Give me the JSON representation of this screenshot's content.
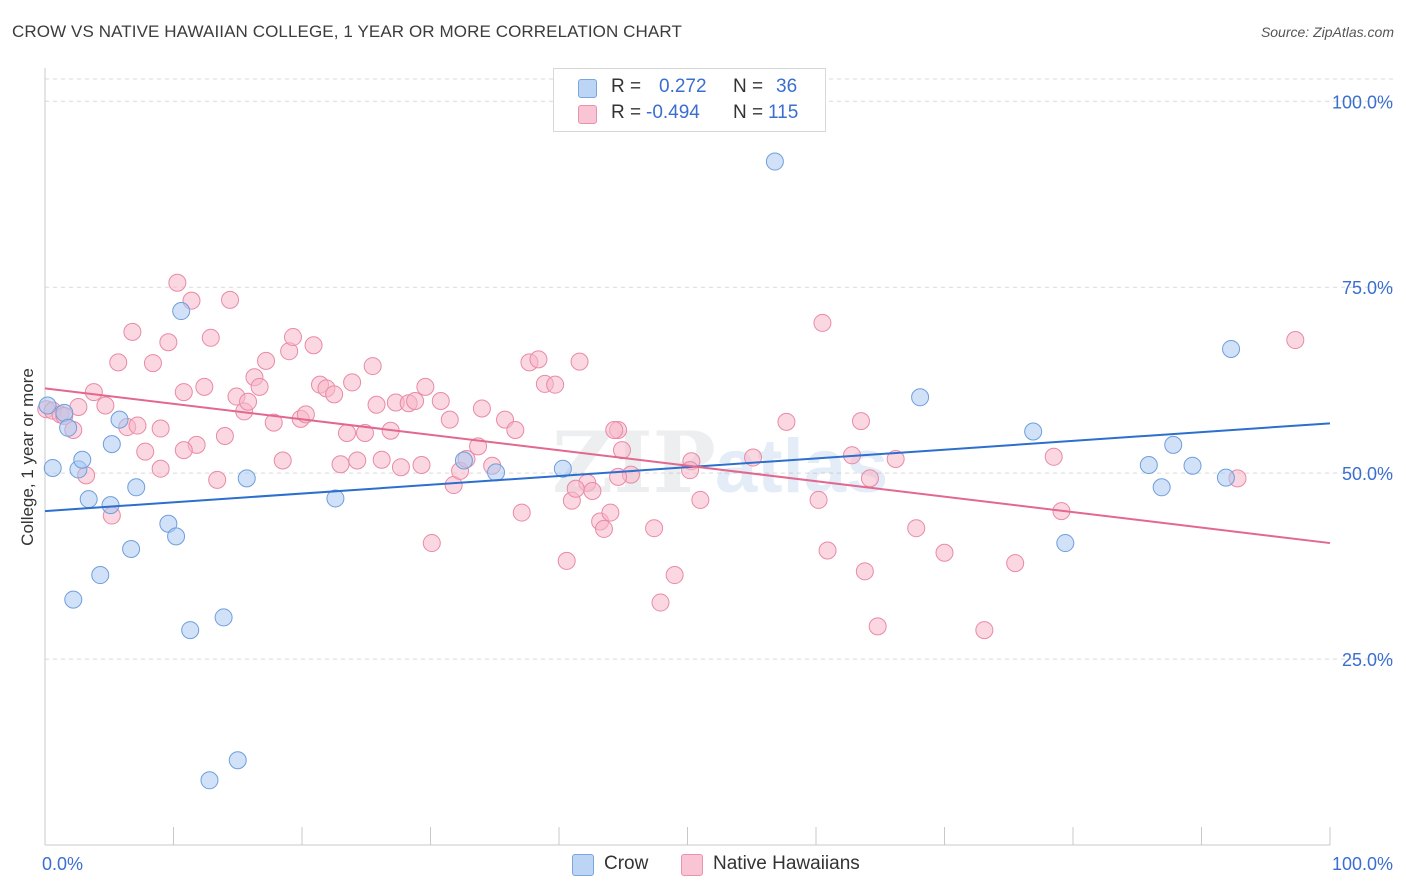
{
  "title": "CROW VS NATIVE HAWAIIAN COLLEGE, 1 YEAR OR MORE CORRELATION CHART",
  "source": "Source: ZipAtlas.com",
  "watermark": {
    "part1": "ZIP",
    "part2": "atlas"
  },
  "legend": {
    "crow": {
      "r_label": "R =",
      "r_value": "0.272",
      "n_label": "N =",
      "n_value": "36"
    },
    "hawaiian": {
      "r_label": "R =",
      "r_value": "-0.494",
      "n_label": "N =",
      "n_value": "115"
    }
  },
  "bottom_legend": {
    "crow": "Crow",
    "hawaiian": "Native Hawaiians"
  },
  "colors": {
    "crow_fill": "#a9c8f2",
    "crow_stroke": "#6f9fdc",
    "crow_line": "#2c6fcd",
    "hawaiian_fill": "#f7b6c9",
    "hawaiian_stroke": "#e98aa6",
    "hawaiian_line": "#e2688f",
    "tick_text": "#3a6fd0",
    "grid": "#d9d9d9"
  },
  "chart_data": {
    "type": "scatter",
    "title": "CROW VS NATIVE HAWAIIAN COLLEGE, 1 YEAR OR MORE CORRELATION CHART",
    "xlabel": "",
    "ylabel": "College, 1 year or more",
    "xlim": [
      0,
      100
    ],
    "ylim": [
      0,
      103
    ],
    "x_tick_labels": {
      "min": "0.0%",
      "max": "100.0%"
    },
    "y_ticks": [
      {
        "value": 25,
        "label": "25.0%"
      },
      {
        "value": 50,
        "label": "50.0%"
      },
      {
        "value": 75,
        "label": "75.0%"
      },
      {
        "value": 100,
        "label": "100.0%"
      }
    ],
    "series": [
      {
        "name": "Crow",
        "r": 0.272,
        "n": 36,
        "trend": {
          "x": [
            0,
            100
          ],
          "y": [
            44.9,
            56.7
          ]
        },
        "points": [
          [
            0.2,
            59.1
          ],
          [
            0.6,
            50.7
          ],
          [
            1.5,
            58.1
          ],
          [
            1.8,
            56.1
          ],
          [
            2.2,
            33.0
          ],
          [
            2.6,
            50.5
          ],
          [
            2.9,
            51.8
          ],
          [
            3.4,
            46.5
          ],
          [
            4.3,
            36.3
          ],
          [
            5.1,
            45.7
          ],
          [
            5.2,
            53.9
          ],
          [
            5.8,
            57.2
          ],
          [
            6.7,
            39.8
          ],
          [
            7.1,
            48.1
          ],
          [
            9.6,
            43.2
          ],
          [
            10.2,
            41.5
          ],
          [
            10.6,
            71.8
          ],
          [
            11.3,
            28.9
          ],
          [
            12.8,
            8.7
          ],
          [
            13.9,
            30.6
          ],
          [
            15.0,
            11.4
          ],
          [
            15.7,
            49.3
          ],
          [
            22.6,
            46.6
          ],
          [
            32.6,
            51.7
          ],
          [
            35.1,
            50.1
          ],
          [
            40.3,
            50.6
          ],
          [
            56.8,
            91.9
          ],
          [
            68.1,
            60.2
          ],
          [
            76.9,
            55.6
          ],
          [
            79.4,
            40.6
          ],
          [
            85.9,
            51.1
          ],
          [
            86.9,
            48.1
          ],
          [
            87.8,
            53.8
          ],
          [
            89.3,
            51.0
          ],
          [
            91.9,
            49.4
          ],
          [
            92.3,
            66.7
          ]
        ]
      },
      {
        "name": "Native Hawaiians",
        "r": -0.494,
        "n": 115,
        "trend": {
          "x": [
            0,
            100
          ],
          "y": [
            61.4,
            40.6
          ]
        },
        "points": [
          [
            0.1,
            58.6
          ],
          [
            0.6,
            58.4
          ],
          [
            1.2,
            57.9
          ],
          [
            1.5,
            57.7
          ],
          [
            2.2,
            55.8
          ],
          [
            2.6,
            58.9
          ],
          [
            3.2,
            49.7
          ],
          [
            3.8,
            60.9
          ],
          [
            4.7,
            59.1
          ],
          [
            5.2,
            44.3
          ],
          [
            5.7,
            64.9
          ],
          [
            6.4,
            56.2
          ],
          [
            6.8,
            69.0
          ],
          [
            7.2,
            56.4
          ],
          [
            7.8,
            52.9
          ],
          [
            8.4,
            64.8
          ],
          [
            9.0,
            56.0
          ],
          [
            9.0,
            50.6
          ],
          [
            9.6,
            67.6
          ],
          [
            10.3,
            75.6
          ],
          [
            10.8,
            60.9
          ],
          [
            11.4,
            73.2
          ],
          [
            11.8,
            53.8
          ],
          [
            12.4,
            61.6
          ],
          [
            12.9,
            68.2
          ],
          [
            13.4,
            49.1
          ],
          [
            14.0,
            55.0
          ],
          [
            14.4,
            73.3
          ],
          [
            14.9,
            60.3
          ],
          [
            15.5,
            58.3
          ],
          [
            15.8,
            59.6
          ],
          [
            16.3,
            62.9
          ],
          [
            16.7,
            61.6
          ],
          [
            17.2,
            65.1
          ],
          [
            17.8,
            56.8
          ],
          [
            18.5,
            51.7
          ],
          [
            19.0,
            66.4
          ],
          [
            19.3,
            68.3
          ],
          [
            19.9,
            57.3
          ],
          [
            20.3,
            57.9
          ],
          [
            20.9,
            67.2
          ],
          [
            21.4,
            61.9
          ],
          [
            21.9,
            61.4
          ],
          [
            22.5,
            60.6
          ],
          [
            23.0,
            51.2
          ],
          [
            23.5,
            55.4
          ],
          [
            23.9,
            62.2
          ],
          [
            24.3,
            51.7
          ],
          [
            24.9,
            55.4
          ],
          [
            25.5,
            64.4
          ],
          [
            25.8,
            59.2
          ],
          [
            26.2,
            51.8
          ],
          [
            26.9,
            55.7
          ],
          [
            27.3,
            59.5
          ],
          [
            27.7,
            50.8
          ],
          [
            28.3,
            59.4
          ],
          [
            28.8,
            59.7
          ],
          [
            29.3,
            51.1
          ],
          [
            29.6,
            61.6
          ],
          [
            30.1,
            40.6
          ],
          [
            30.8,
            59.7
          ],
          [
            31.5,
            57.2
          ],
          [
            31.8,
            48.4
          ],
          [
            32.3,
            50.3
          ],
          [
            32.8,
            51.9
          ],
          [
            33.7,
            53.6
          ],
          [
            34.0,
            58.7
          ],
          [
            34.8,
            51.0
          ],
          [
            35.8,
            57.2
          ],
          [
            36.6,
            55.8
          ],
          [
            37.1,
            44.7
          ],
          [
            37.7,
            64.9
          ],
          [
            38.4,
            65.3
          ],
          [
            38.9,
            62.0
          ],
          [
            39.7,
            61.9
          ],
          [
            40.6,
            38.2
          ],
          [
            41.0,
            46.3
          ],
          [
            41.6,
            65.0
          ],
          [
            42.2,
            48.7
          ],
          [
            42.6,
            47.6
          ],
          [
            43.2,
            43.5
          ],
          [
            43.5,
            42.5
          ],
          [
            44.0,
            44.7
          ],
          [
            44.6,
            55.8
          ],
          [
            44.9,
            53.1
          ],
          [
            45.6,
            49.8
          ],
          [
            47.4,
            42.6
          ],
          [
            47.9,
            32.6
          ],
          [
            49.0,
            36.3
          ],
          [
            50.3,
            51.6
          ],
          [
            51.0,
            46.4
          ],
          [
            55.1,
            52.1
          ],
          [
            57.7,
            56.9
          ],
          [
            60.2,
            46.4
          ],
          [
            60.5,
            70.2
          ],
          [
            60.9,
            39.6
          ],
          [
            62.8,
            52.4
          ],
          [
            63.5,
            57.0
          ],
          [
            63.8,
            36.8
          ],
          [
            64.2,
            49.3
          ],
          [
            64.8,
            29.4
          ],
          [
            66.2,
            51.9
          ],
          [
            67.8,
            42.6
          ],
          [
            70.0,
            39.3
          ],
          [
            73.1,
            28.9
          ],
          [
            75.5,
            37.9
          ],
          [
            78.5,
            52.2
          ],
          [
            79.1,
            44.9
          ],
          [
            92.8,
            49.3
          ],
          [
            97.3,
            67.9
          ],
          [
            50.2,
            50.4
          ],
          [
            44.6,
            49.5
          ],
          [
            44.3,
            55.8
          ],
          [
            41.3,
            47.9
          ],
          [
            10.8,
            53.1
          ]
        ]
      }
    ]
  }
}
